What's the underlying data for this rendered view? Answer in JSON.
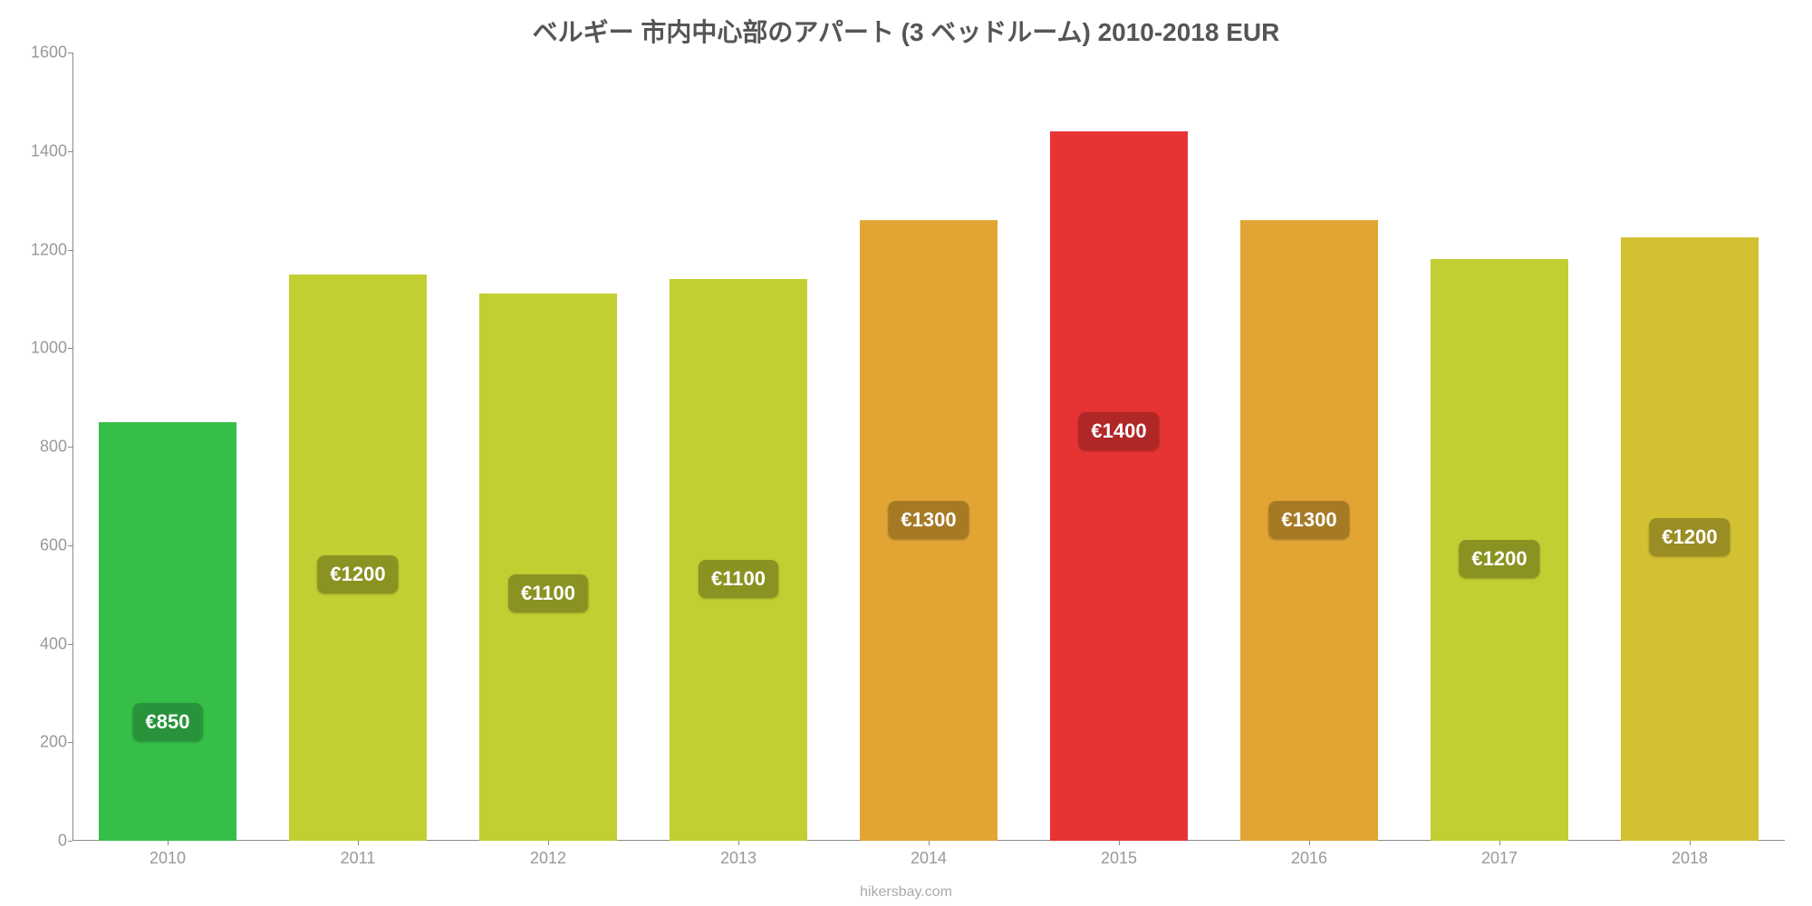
{
  "chart": {
    "type": "bar",
    "title": "ベルギー 市内中心部のアパート (3 ベッドルーム) 2010-2018 EUR",
    "title_fontsize": 28,
    "title_color": "#555555",
    "background_color": "#ffffff",
    "axis_line_color": "#888888",
    "tick_label_color": "#999999",
    "x_tick_fontsize": 18,
    "y_tick_fontsize": 18,
    "ylim": [
      0,
      1600
    ],
    "ytick_step": 200,
    "y_ticks": [
      0,
      200,
      400,
      600,
      800,
      1000,
      1200,
      1400,
      1600
    ],
    "categories": [
      "2010",
      "2011",
      "2012",
      "2013",
      "2014",
      "2015",
      "2016",
      "2017",
      "2018"
    ],
    "values": [
      850,
      1150,
      1110,
      1140,
      1260,
      1440,
      1260,
      1180,
      1225
    ],
    "bar_labels": [
      "€850",
      "€1200",
      "€1100",
      "€1100",
      "€1300",
      "€1400",
      "€1300",
      "€1200",
      "€1200"
    ],
    "bar_colors": [
      "#35be48",
      "#c3ce32",
      "#c3ce32",
      "#c3ce32",
      "#e2a534",
      "#e63434",
      "#e2a534",
      "#c3ce32",
      "#d4c131"
    ],
    "label_bg_colors": [
      "#28933b",
      "#8a9222",
      "#8a9222",
      "#8a9222",
      "#a67a25",
      "#b02727",
      "#a67a25",
      "#8a9222",
      "#9a8d23"
    ],
    "bar_label_fontsize": 22,
    "bar_label_color": "#ffffff",
    "bar_width_ratio": 0.72,
    "label_offset_from_top": 310,
    "attribution": "hikersbay.com",
    "attribution_fontsize": 16,
    "attribution_color": "#aaaaaa"
  }
}
